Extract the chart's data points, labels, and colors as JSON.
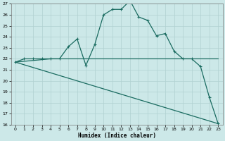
{
  "xlabel": "Humidex (Indice chaleur)",
  "xlim": [
    -0.5,
    23.5
  ],
  "ylim": [
    16,
    27
  ],
  "yticks": [
    16,
    17,
    18,
    19,
    20,
    21,
    22,
    23,
    24,
    25,
    26,
    27
  ],
  "xticks": [
    0,
    1,
    2,
    3,
    4,
    5,
    6,
    7,
    8,
    9,
    10,
    11,
    12,
    13,
    14,
    15,
    16,
    17,
    18,
    19,
    20,
    21,
    22,
    23
  ],
  "bg_color": "#cce8e8",
  "line_color": "#1a6b60",
  "grid_color": "#b0d0d0",
  "lines": [
    {
      "x": [
        0,
        1,
        2,
        3,
        4,
        5,
        6,
        7,
        8,
        9,
        10,
        11,
        12,
        13,
        14,
        15,
        16,
        17,
        18,
        19,
        20,
        21,
        22,
        23
      ],
      "y": [
        21.7,
        22.0,
        22.0,
        22.0,
        22.0,
        22.0,
        23.1,
        23.8,
        21.4,
        23.3,
        26.0,
        26.5,
        26.5,
        27.3,
        25.8,
        25.5,
        24.1,
        24.3,
        22.7,
        22.0,
        22.0,
        21.3,
        18.5,
        16.1
      ],
      "marker": "+",
      "lw": 0.9
    },
    {
      "x": [
        0,
        4,
        20,
        23
      ],
      "y": [
        21.7,
        22.0,
        22.0,
        22.0
      ],
      "marker": null,
      "lw": 0.9
    },
    {
      "x": [
        0,
        23
      ],
      "y": [
        21.7,
        16.1
      ],
      "marker": null,
      "lw": 0.9
    }
  ]
}
